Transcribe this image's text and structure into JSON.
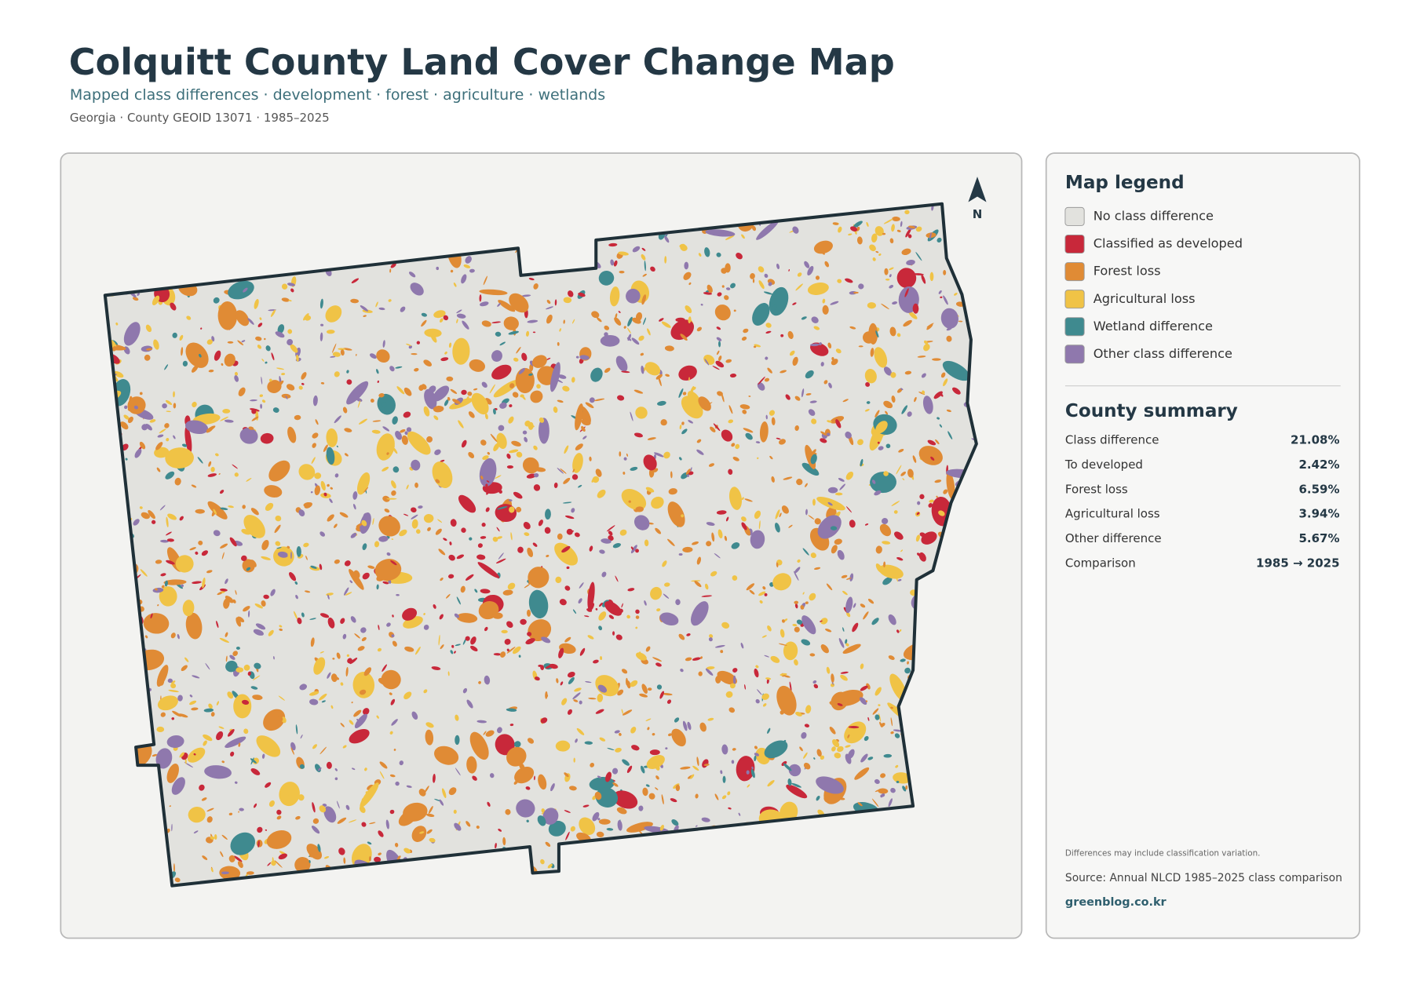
{
  "header": {
    "title": "Colquitt County Land Cover Change Map",
    "subtitle": "Mapped class differences · development · forest · agriculture · wetlands",
    "meta": "Georgia · County GEOID 13071 · 1985–2025"
  },
  "north": "N",
  "legend": {
    "title": "Map legend",
    "items": [
      {
        "label": "No class difference",
        "color": "#e2e2de"
      },
      {
        "label": "Classified as developed",
        "color": "#c8283a"
      },
      {
        "label": "Forest loss",
        "color": "#e08b35"
      },
      {
        "label": "Agricultural loss",
        "color": "#f0c346"
      },
      {
        "label": "Wetland difference",
        "color": "#3f8a8f"
      },
      {
        "label": "Other class difference",
        "color": "#8f78ad"
      }
    ]
  },
  "summary": {
    "title": "County summary",
    "rows": [
      {
        "label": "Class difference",
        "value": "21.08%"
      },
      {
        "label": "To developed",
        "value": "2.42%"
      },
      {
        "label": "Forest loss",
        "value": "6.59%"
      },
      {
        "label": "Agricultural loss",
        "value": "3.94%"
      },
      {
        "label": "Other difference",
        "value": "5.67%"
      },
      {
        "label": "Comparison",
        "value": "1985 → 2025"
      }
    ]
  },
  "footer": {
    "note": "Differences may include classification variation.",
    "source": "Source: Annual NLCD 1985–2025 class comparison",
    "link": "greenblog.co.kr"
  }
}
